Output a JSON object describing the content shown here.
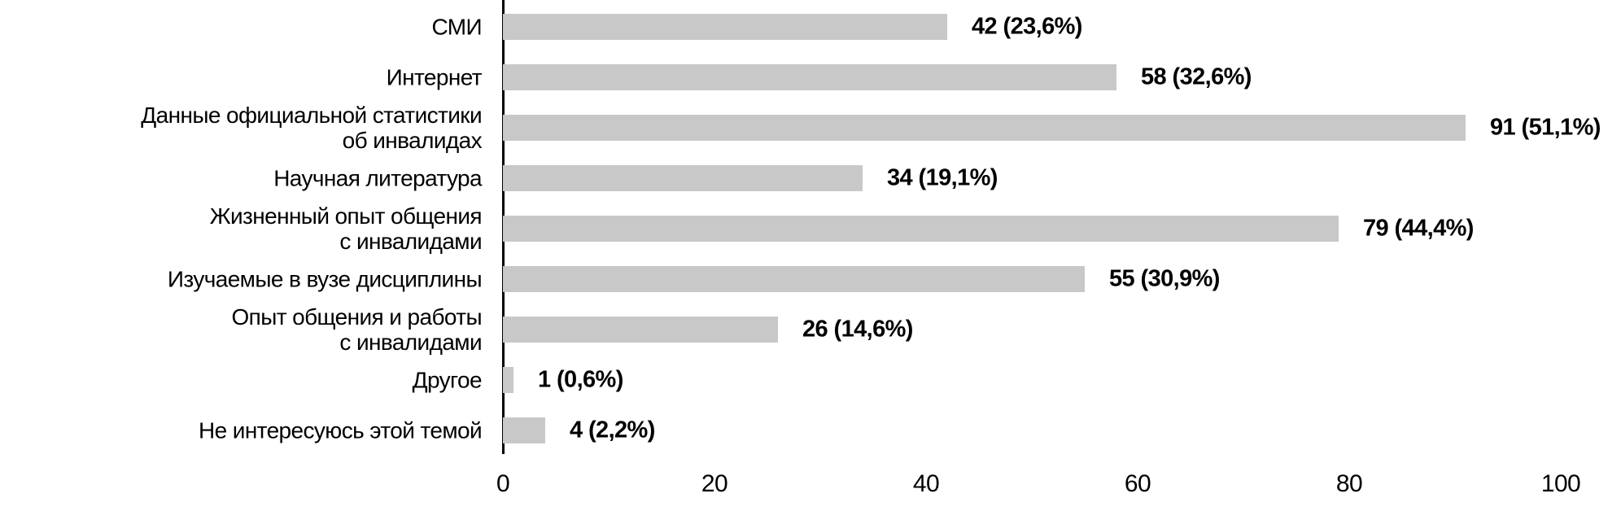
{
  "chart_data": {
    "type": "bar",
    "orientation": "horizontal",
    "title": "",
    "xlabel": "",
    "ylabel": "",
    "xlim": [
      0,
      100
    ],
    "x_ticks": [
      "0",
      "20",
      "40",
      "60",
      "80",
      "100"
    ],
    "grid": false,
    "legend": false,
    "bar_color": "#c8c8c8",
    "axis_color": "#000000",
    "text_color": "#000000",
    "categories": [
      "СМИ",
      "Интернет",
      "Данные официальной статистики\nоб инвалидах",
      "Научная литература",
      "Жизненный опыт общения\nс инвалидами",
      "Изучаемые в вузе дисциплины",
      "Опыт общения и работы\nс инвалидами",
      "Другое",
      "Не интересуюсь этой темой"
    ],
    "values": [
      42,
      58,
      91,
      34,
      79,
      55,
      26,
      1,
      4
    ],
    "percentages": [
      23.6,
      32.6,
      51.1,
      19.1,
      44.4,
      30.9,
      14.6,
      0.6,
      2.2
    ],
    "value_labels": [
      "42 (23,6%)",
      "58 (32,6%)",
      "91 (51,1%)",
      "34 (19,1%)",
      "79 (44,4%)",
      "55 (30,9%)",
      "26 (14,6%)",
      "1 (0,6%)",
      "4 (2,2%)"
    ]
  }
}
